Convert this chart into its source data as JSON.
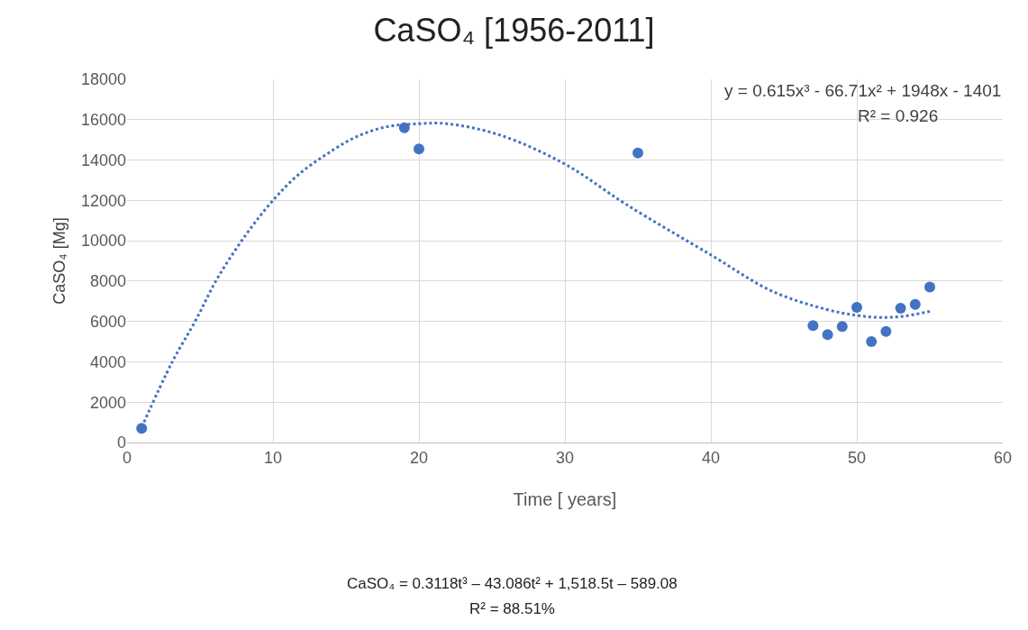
{
  "chart_data": {
    "type": "scatter",
    "title": "CaSO₄ [1956-2011]",
    "xlabel": "Time [ years]",
    "ylabel": "CaSO₄ [Mg]",
    "xlim": [
      0,
      60
    ],
    "xticks": [
      0,
      10,
      20,
      30,
      40,
      50,
      60
    ],
    "ylim": [
      0,
      18000
    ],
    "yticks": [
      0,
      2000,
      4000,
      6000,
      8000,
      10000,
      12000,
      14000,
      16000,
      18000
    ],
    "grid": true,
    "series": [
      {
        "color": "#4472c4",
        "marker": "circle",
        "x": [
          1,
          19,
          20,
          35,
          47,
          48,
          49,
          50,
          51,
          52,
          53,
          54,
          55
        ],
        "values": [
          700,
          15600,
          14550,
          14350,
          5800,
          5350,
          5750,
          6700,
          5000,
          5500,
          6650,
          6850,
          7700
        ]
      },
      {
        "type": "line",
        "color": "#4472c4",
        "line_style": "dotted",
        "x": [
          1,
          3.1,
          4.7,
          6.2,
          8.2,
          10,
          11.7,
          13.7,
          15.7,
          17.8,
          20,
          21.9,
          25.5,
          30,
          34.2,
          40,
          44.2,
          47.9,
          50,
          51.6,
          53.1,
          55
        ],
        "values": [
          750,
          4000,
          6050,
          8150,
          10350,
          12000,
          13250,
          14300,
          15150,
          15650,
          15800,
          15800,
          15250,
          13800,
          11800,
          9300,
          7500,
          6600,
          6300,
          6200,
          6250,
          6500
        ]
      }
    ],
    "annotations": [
      "y = 0.615x³ - 66.71x² + 1948x - 1401",
      "R² = 0.926",
      "CaSO₄ = 0.3118t³ – 43.086t² + 1,518.5t – 589.08",
      "R² = 88.51%"
    ]
  }
}
